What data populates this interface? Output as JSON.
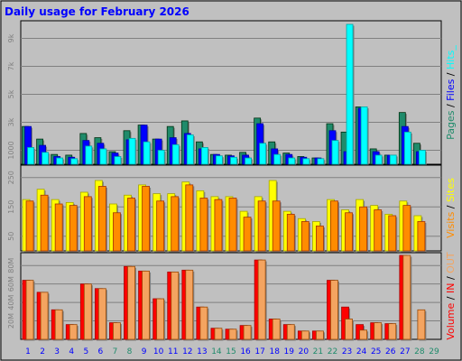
{
  "chart_data": {
    "type": "bar",
    "title": "Daily usage for February 2026",
    "categories": [
      "1",
      "2",
      "3",
      "4",
      "5",
      "6",
      "7",
      "8",
      "9",
      "10",
      "11",
      "12",
      "13",
      "14",
      "15",
      "16",
      "17",
      "18",
      "19",
      "20",
      "21",
      "22",
      "23",
      "24",
      "25",
      "26",
      "27",
      "28",
      "29"
    ],
    "weekend_days": [
      "7",
      "8",
      "14",
      "15",
      "21",
      "22",
      "28",
      "29"
    ],
    "colors": {
      "background": "#c0c0c0",
      "title": "#0000ff",
      "pages": "#1f8b6b",
      "files": "#0000ff",
      "hits": "#00ffff",
      "sites": "#ffff00",
      "visits": "#ff8c00",
      "kbytes_in": "#ff0000",
      "kbytes_out": "#f4a460",
      "weekday_label": "#0000ff",
      "weekend_label": "#1f8b6b"
    },
    "panels": [
      {
        "id": "hits",
        "ylim": [
          0,
          10000
        ],
        "ticks": [
          {
            "label": "1000",
            "value": 1000
          },
          {
            "label": "3k",
            "value": 3000
          },
          {
            "label": "5k",
            "value": 5000
          },
          {
            "label": "7k",
            "value": 7000
          },
          {
            "label": "9k",
            "value": 9000
          }
        ],
        "right_label": [
          {
            "text": "Pages",
            "color": "#1f8b6b"
          },
          {
            "text": " / ",
            "color": "#000000"
          },
          {
            "text": "Files",
            "color": "#0000ff"
          },
          {
            "text": " / ",
            "color": "#000000"
          },
          {
            "text": "Hits_",
            "color": "#00ffff"
          }
        ],
        "series": [
          {
            "name": "Pages",
            "color": "#1f8b6b",
            "values": [
              2700,
              1800,
              700,
              650,
              2200,
              1900,
              900,
              2400,
              2800,
              1800,
              2700,
              3100,
              1600,
              700,
              650,
              850,
              3300,
              1600,
              800,
              550,
              450,
              2900,
              2300,
              4100,
              1100,
              650,
              3700,
              1500,
              0
            ]
          },
          {
            "name": "Files",
            "color": "#0000ff",
            "values": [
              2700,
              1350,
              550,
              500,
              1700,
              1500,
              800,
              1750,
              2800,
              1800,
              1900,
              2200,
              1100,
              700,
              600,
              650,
              2900,
              1100,
              700,
              500,
              450,
              2400,
              900,
              4000,
              900,
              650,
              2700,
              900,
              0
            ]
          },
          {
            "name": "Hits_",
            "color": "#00ffff",
            "values": [
              1200,
              850,
              450,
              400,
              1300,
              1100,
              550,
              1850,
              1600,
              1000,
              1400,
              2100,
              1200,
              600,
              500,
              450,
              1500,
              700,
              450,
              400,
              400,
              1700,
              10000,
              4100,
              650,
              650,
              2300,
              1000,
              0
            ]
          }
        ]
      },
      {
        "id": "visits",
        "ylim": [
          0,
          280
        ],
        "ticks": [
          {
            "label": "50",
            "value": 50
          },
          {
            "label": "150",
            "value": 150
          },
          {
            "label": "250",
            "value": 250
          }
        ],
        "right_label": [
          {
            "text": "Visits",
            "color": "#ff8c00"
          },
          {
            "text": " / ",
            "color": "#000000"
          },
          {
            "text": "Sites",
            "color": "#ffff00"
          }
        ],
        "series": [
          {
            "name": "Sites",
            "color": "#ffff00",
            "values": [
              175,
              210,
              175,
              165,
              200,
              240,
              160,
              190,
              225,
              195,
              195,
              235,
              205,
              185,
              185,
              135,
              185,
              240,
              135,
              110,
              100,
              175,
              140,
              175,
              155,
              125,
              170,
              120,
              0
            ]
          },
          {
            "name": "Visits",
            "color": "#ff8c00",
            "values": [
              170,
              190,
              160,
              155,
              185,
              220,
              130,
              180,
              220,
              170,
              185,
              225,
              180,
              175,
              180,
              115,
              170,
              170,
              125,
              100,
              85,
              170,
              130,
              150,
              140,
              120,
              155,
              100,
              0
            ]
          }
        ]
      },
      {
        "id": "volume",
        "ylim": [
          0,
          90
        ],
        "ticks": [
          {
            "label": "20M",
            "value": 20
          },
          {
            "label": "40M",
            "value": 40
          },
          {
            "label": "60M",
            "value": 60
          },
          {
            "label": "80M",
            "value": 80
          }
        ],
        "right_label": [
          {
            "text": "Volume",
            "color": "#ff0000"
          },
          {
            "text": " / ",
            "color": "#000000"
          },
          {
            "text": "IN",
            "color": "#ff0000"
          },
          {
            "text": " / ",
            "color": "#000000"
          },
          {
            "text": "OUT",
            "color": "#f4a460"
          }
        ],
        "series": [
          {
            "name": "IN",
            "color": "#ff0000",
            "values": [
              64,
              51,
              32,
              16,
              60,
              55,
              18,
              79,
              74,
              44,
              73,
              75,
              35,
              12,
              11,
              15,
              86,
              22,
              16,
              9,
              9,
              64,
              35,
              16,
              18,
              17,
              91,
              0,
              0
            ]
          },
          {
            "name": "OUT",
            "color": "#f4a460",
            "values": [
              64,
              51,
              32,
              16,
              60,
              55,
              18,
              79,
              74,
              44,
              73,
              75,
              35,
              12,
              11,
              15,
              86,
              22,
              16,
              9,
              9,
              64,
              22,
              10,
              18,
              17,
              91,
              32,
              0
            ]
          }
        ]
      }
    ]
  }
}
